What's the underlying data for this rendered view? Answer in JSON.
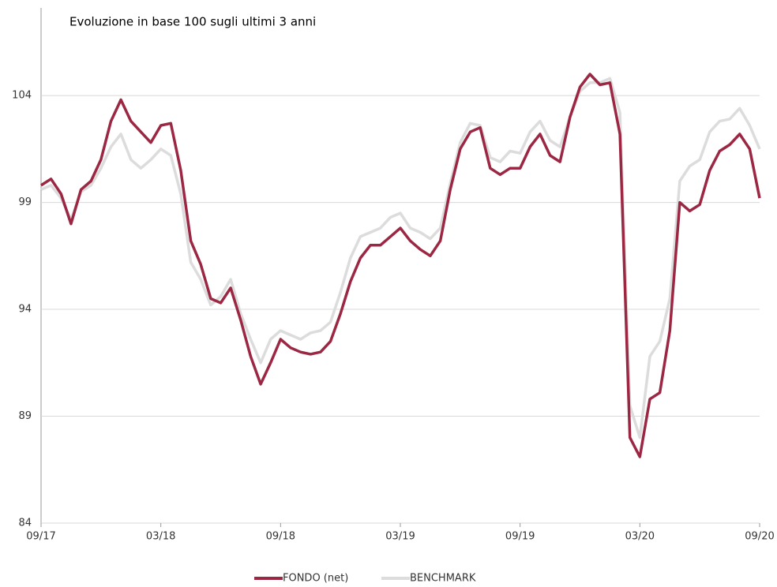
{
  "chart_data": {
    "type": "line",
    "title": "Evoluzione in base 100 sugli ultimi 3 anni",
    "categories": [
      "09/17",
      null,
      null,
      null,
      null,
      null,
      null,
      null,
      null,
      null,
      null,
      null,
      "03/18",
      null,
      null,
      null,
      null,
      null,
      null,
      null,
      null,
      null,
      null,
      null,
      "09/18",
      null,
      null,
      null,
      null,
      null,
      null,
      null,
      null,
      null,
      null,
      null,
      "03/19",
      null,
      null,
      null,
      null,
      null,
      null,
      null,
      null,
      null,
      null,
      null,
      "09/19",
      null,
      null,
      null,
      null,
      null,
      null,
      null,
      null,
      null,
      null,
      null,
      "03/20",
      null,
      null,
      null,
      null,
      null,
      null,
      null,
      null,
      null,
      null,
      null,
      "09/20"
    ],
    "series": [
      {
        "name": "FONDO (net)",
        "color": "#9b2743",
        "values": [
          99.8,
          100.1,
          99.4,
          98.0,
          99.6,
          100.0,
          101.0,
          102.8,
          103.8,
          102.8,
          102.3,
          101.8,
          102.6,
          102.7,
          100.5,
          97.2,
          96.1,
          94.5,
          94.3,
          95.0,
          93.5,
          91.8,
          90.5,
          91.5,
          92.6,
          92.2,
          92.0,
          91.9,
          92.0,
          92.5,
          93.8,
          95.3,
          96.4,
          97.0,
          97.0,
          97.4,
          97.8,
          97.2,
          96.8,
          96.5,
          97.2,
          99.6,
          101.5,
          102.3,
          102.5,
          100.6,
          100.3,
          100.6,
          100.6,
          101.6,
          102.2,
          101.2,
          100.9,
          103.0,
          104.4,
          105.0,
          104.5,
          104.6,
          102.2,
          88.0,
          87.1,
          89.8,
          90.1,
          93.0,
          99.0,
          98.6,
          98.9,
          100.5,
          101.4,
          101.7,
          102.2,
          101.5,
          99.2
        ]
      },
      {
        "name": "BENCHMARK",
        "color": "#dcdcdc",
        "values": [
          99.6,
          99.8,
          99.2,
          98.2,
          99.5,
          99.8,
          100.6,
          101.6,
          102.2,
          101.0,
          100.6,
          101.0,
          101.5,
          101.2,
          99.4,
          96.2,
          95.4,
          94.2,
          94.6,
          95.4,
          93.8,
          92.6,
          91.5,
          92.6,
          93.0,
          92.8,
          92.6,
          92.9,
          93.0,
          93.4,
          94.8,
          96.4,
          97.4,
          97.6,
          97.8,
          98.3,
          98.5,
          97.8,
          97.6,
          97.3,
          97.8,
          99.9,
          101.8,
          102.7,
          102.6,
          101.1,
          100.9,
          101.4,
          101.3,
          102.3,
          102.8,
          101.9,
          101.6,
          103.0,
          104.2,
          104.6,
          104.6,
          104.8,
          103.2,
          89.5,
          88.0,
          91.8,
          92.5,
          94.5,
          100.0,
          100.7,
          101.0,
          102.3,
          102.8,
          102.9,
          103.4,
          102.6,
          101.5
        ]
      }
    ],
    "ylim": [
      84,
      108.1
    ],
    "yticks": [
      84,
      89,
      94,
      99,
      104
    ],
    "grid": true,
    "legend": "bottom"
  }
}
